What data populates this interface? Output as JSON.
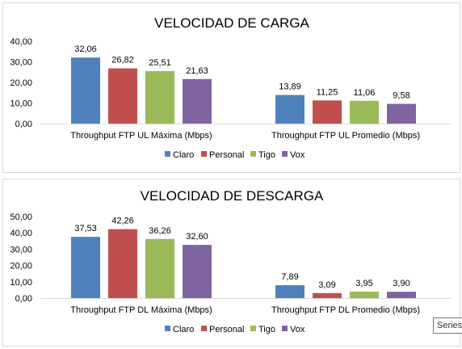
{
  "chart_data": [
    {
      "type": "bar",
      "title": "VELOCIDAD DE CARGA",
      "categories": [
        "Throughput FTP UL Máxima (Mbps)",
        "Throughput FTP UL Promedio (Mbps)"
      ],
      "series": [
        {
          "name": "Claro",
          "color": "#4f81bd",
          "values": [
            32.06,
            13.89
          ],
          "labels": [
            "32,06",
            "13,89"
          ]
        },
        {
          "name": "Personal",
          "color": "#c0504d",
          "values": [
            26.82,
            11.25
          ],
          "labels": [
            "26,82",
            "11,25"
          ]
        },
        {
          "name": "Tigo",
          "color": "#9bbb59",
          "values": [
            25.51,
            11.06
          ],
          "labels": [
            "25,51",
            "11,06"
          ]
        },
        {
          "name": "Vox",
          "color": "#8064a2",
          "values": [
            21.63,
            9.58
          ],
          "labels": [
            "21,63",
            "9,58"
          ]
        }
      ],
      "ylim": [
        0,
        40
      ],
      "yticks": [
        0,
        10,
        20,
        30,
        40
      ],
      "ytick_labels": [
        "0,00",
        "10,00",
        "20,00",
        "30,00",
        "40,00"
      ],
      "grid": false,
      "legend_position": "bottom"
    },
    {
      "type": "bar",
      "title": "VELOCIDAD DE DESCARGA",
      "categories": [
        "Throughput FTP DL Máxima (Mbps)",
        "Throughput FTP DL Promedio (Mbps)"
      ],
      "series": [
        {
          "name": "Claro",
          "color": "#4f81bd",
          "values": [
            37.53,
            7.89
          ],
          "labels": [
            "37,53",
            "7,89"
          ]
        },
        {
          "name": "Personal",
          "color": "#c0504d",
          "values": [
            42.26,
            3.09
          ],
          "labels": [
            "42,26",
            "3,09"
          ]
        },
        {
          "name": "Tigo",
          "color": "#9bbb59",
          "values": [
            36.26,
            3.95
          ],
          "labels": [
            "36,26",
            "3,95"
          ]
        },
        {
          "name": "Vox",
          "color": "#8064a2",
          "values": [
            32.6,
            3.9
          ],
          "labels": [
            "32,60",
            "3,90"
          ]
        }
      ],
      "ylim": [
        0,
        50
      ],
      "yticks": [
        0,
        10,
        20,
        30,
        40,
        50
      ],
      "ytick_labels": [
        "0,00",
        "10,00",
        "20,00",
        "30,00",
        "40,00",
        "50,00"
      ],
      "grid": false,
      "legend_position": "bottom"
    }
  ],
  "tooltip": {
    "text": "Series"
  }
}
